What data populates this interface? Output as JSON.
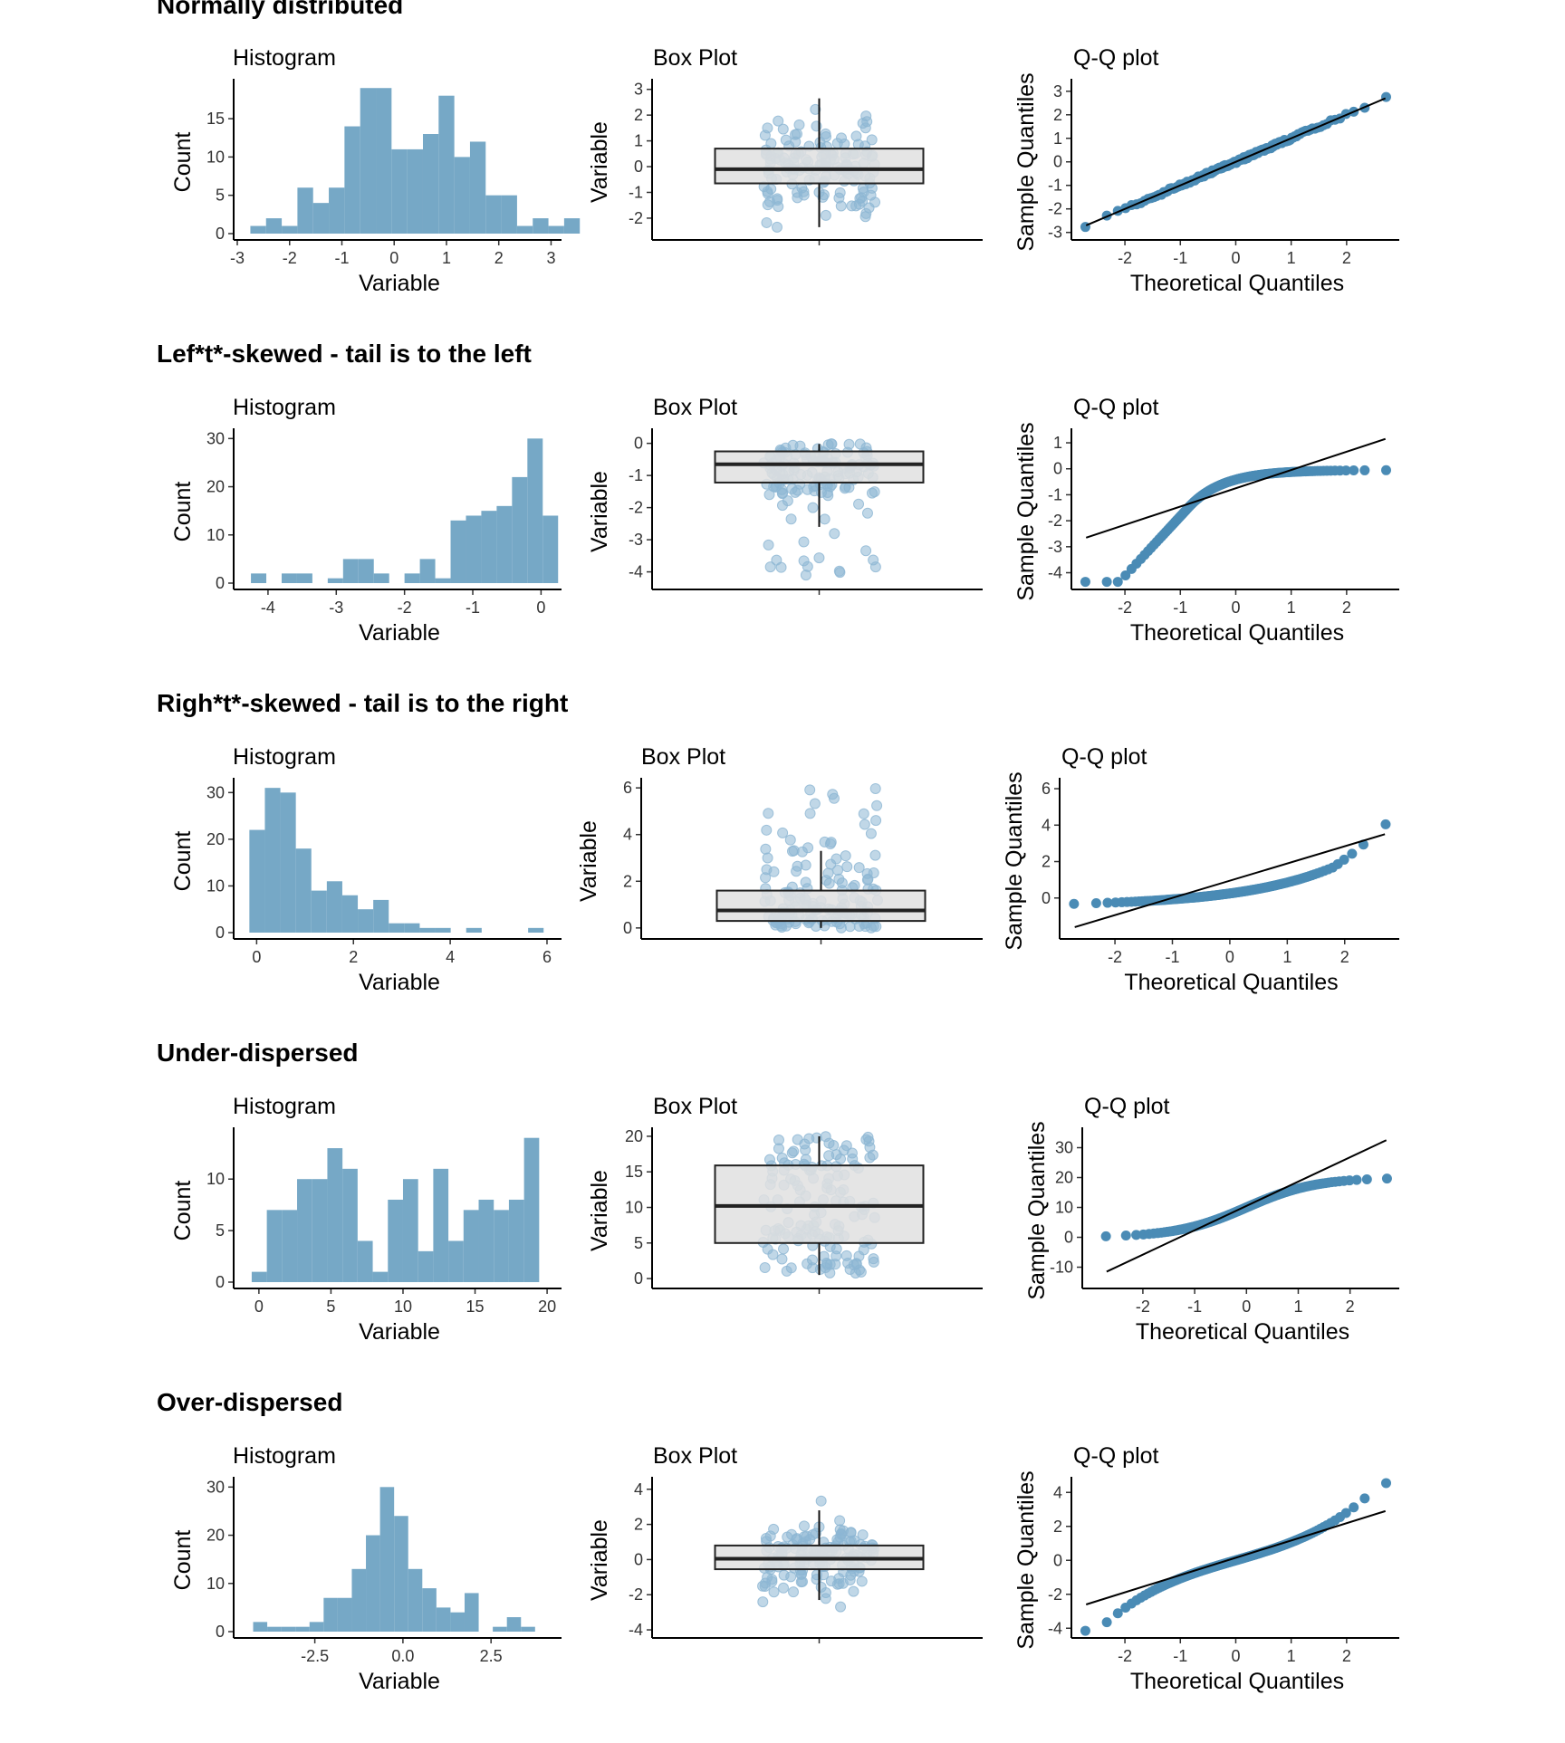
{
  "rows": [
    {
      "title": "Normally distributed"
    },
    {
      "title": "Lef*t*-skewed - tail is to the left"
    },
    {
      "title": "Righ*t*-skewed - tail is to the right"
    },
    {
      "title": "Under-dispersed"
    },
    {
      "title": "Over-dispersed"
    }
  ],
  "colors": {
    "hist_fill": "#76A8C6",
    "point": "#4A8BB5",
    "jitter": "#8DB6D3",
    "box_fill": "#E0E0E0",
    "line": "#000000"
  },
  "chart_data": [
    {
      "type": "bar",
      "subtype": "histogram",
      "title": "Histogram",
      "xlabel": "Variable",
      "ylabel": "Count",
      "xlim": [
        -3,
        3.2
      ],
      "ylim": [
        0,
        19.5
      ],
      "xticks": [
        -3,
        -2,
        -1,
        0,
        1,
        2,
        3
      ],
      "xtick_labels": [
        "-3",
        "-2",
        "-1",
        "0",
        "1",
        "2",
        "3"
      ],
      "yticks": [
        0,
        5,
        10,
        15
      ],
      "ytick_labels": [
        "0",
        "5",
        "10",
        "15"
      ],
      "bins": {
        "start": -2.75,
        "width": 0.3,
        "counts": [
          1,
          2,
          1,
          6,
          4,
          6,
          14,
          19,
          19,
          11,
          11,
          13,
          18,
          10,
          12,
          5,
          5,
          1,
          2,
          1,
          2
        ]
      }
    },
    {
      "type": "box",
      "title": "Box Plot",
      "ylabel": "Variable",
      "ylim": [
        -2.6,
        3.2
      ],
      "yticks": [
        -2,
        -1,
        0,
        1,
        2,
        3
      ],
      "ytick_labels": [
        "-2",
        "-1",
        "0",
        "1",
        "2",
        "3"
      ],
      "box": {
        "q1": -0.65,
        "median": -0.1,
        "q3": 0.7,
        "whisker_low": -2.35,
        "whisker_high": 2.65
      },
      "points_min": -2.35,
      "points_max": 2.95
    },
    {
      "type": "scatter",
      "subtype": "qq",
      "title": "Q-Q plot",
      "xlabel": "Theoretical Quantiles",
      "ylabel": "Sample Quantiles",
      "xlim": [
        -2.9,
        2.95
      ],
      "ylim": [
        -3.05,
        3.3
      ],
      "xticks": [
        -2,
        -1,
        0,
        1,
        2
      ],
      "xtick_labels": [
        "-2",
        "-1",
        "0",
        "1",
        "2"
      ],
      "yticks": [
        -3,
        -2,
        -1,
        0,
        1,
        2,
        3
      ],
      "ytick_labels": [
        "-3",
        "-2",
        "-1",
        "0",
        "1",
        "2",
        "3"
      ],
      "line": {
        "x1": -2.7,
        "y1": -2.7,
        "x2": 2.7,
        "y2": 2.7
      },
      "samples": {
        "kind": "normal"
      }
    },
    {
      "type": "bar",
      "subtype": "histogram",
      "title": "Histogram",
      "xlabel": "Variable",
      "ylabel": "Count",
      "xlim": [
        -4.45,
        0.3
      ],
      "ylim": [
        0,
        31
      ],
      "xticks": [
        -4,
        -3,
        -2,
        -1,
        0
      ],
      "xtick_labels": [
        "-4",
        "-3",
        "-2",
        "-1",
        "0"
      ],
      "yticks": [
        0,
        10,
        20,
        30
      ],
      "ytick_labels": [
        "0",
        "10",
        "20",
        "30"
      ],
      "bins": {
        "start": -4.25,
        "width": 0.225,
        "counts": [
          2,
          0,
          2,
          2,
          0,
          1,
          5,
          5,
          2,
          0,
          2,
          5,
          1,
          13,
          14,
          15,
          16,
          22,
          30,
          14
        ]
      }
    },
    {
      "type": "box",
      "title": "Box Plot",
      "ylabel": "Variable",
      "ylim": [
        -4.35,
        0.3
      ],
      "yticks": [
        -4,
        -3,
        -2,
        -1,
        0
      ],
      "ytick_labels": [
        "-4",
        "-3",
        "-2",
        "-1",
        "0"
      ],
      "box": {
        "q1": -1.22,
        "median": -0.65,
        "q3": -0.25,
        "whisker_low": -2.6,
        "whisker_high": -0.02
      },
      "points_min": -4.2,
      "points_max": 0.0
    },
    {
      "type": "scatter",
      "subtype": "qq",
      "title": "Q-Q plot",
      "xlabel": "Theoretical Quantiles",
      "ylabel": "Sample Quantiles",
      "xlim": [
        -2.9,
        2.95
      ],
      "ylim": [
        -4.4,
        1.35
      ],
      "xticks": [
        -2,
        -1,
        0,
        1,
        2
      ],
      "xtick_labels": [
        "-2",
        "-1",
        "0",
        "1",
        "2"
      ],
      "yticks": [
        -4,
        -3,
        -2,
        -1,
        0,
        1
      ],
      "ytick_labels": [
        "-4",
        "-3",
        "-2",
        "-1",
        "0",
        "1"
      ],
      "line": {
        "x1": -2.7,
        "y1": -2.65,
        "x2": 2.7,
        "y2": 1.15
      },
      "samples": {
        "kind": "left"
      }
    },
    {
      "type": "bar",
      "subtype": "histogram",
      "title": "Histogram",
      "xlabel": "Variable",
      "ylabel": "Count",
      "xlim": [
        -0.4,
        6.3
      ],
      "ylim": [
        0,
        32
      ],
      "xticks": [
        0,
        2,
        4,
        6
      ],
      "xtick_labels": [
        "0",
        "2",
        "4",
        "6"
      ],
      "yticks": [
        0,
        10,
        20,
        30
      ],
      "ytick_labels": [
        "0",
        "10",
        "20",
        "30"
      ],
      "bins": {
        "start": -0.15,
        "width": 0.32,
        "counts": [
          22,
          31,
          30,
          18,
          9,
          11,
          8,
          5,
          7,
          2,
          2,
          1,
          1,
          0,
          1,
          0,
          0,
          0,
          1
        ]
      }
    },
    {
      "type": "box",
      "title": "Box Plot",
      "ylabel": "Variable",
      "ylim": [
        -0.2,
        6.2
      ],
      "yticks": [
        0,
        2,
        4,
        6
      ],
      "ytick_labels": [
        "0",
        "2",
        "4",
        "6"
      ],
      "box": {
        "q1": 0.3,
        "median": 0.75,
        "q3": 1.6,
        "whisker_low": 0.0,
        "whisker_high": 3.3
      },
      "points_min": 0.0,
      "points_max": 5.9
    },
    {
      "type": "scatter",
      "subtype": "qq",
      "title": "Q-Q plot",
      "xlabel": "Theoretical Quantiles",
      "ylabel": "Sample Quantiles",
      "xlim": [
        -2.9,
        2.95
      ],
      "ylim": [
        -1.9,
        6.3
      ],
      "xticks": [
        -2,
        -1,
        0,
        1,
        2
      ],
      "xtick_labels": [
        "-2",
        "-1",
        "0",
        "1",
        "2"
      ],
      "yticks": [
        0,
        2,
        4,
        6
      ],
      "ytick_labels": [
        "0",
        "2",
        "4",
        "6"
      ],
      "line": {
        "x1": -2.7,
        "y1": -1.6,
        "x2": 2.7,
        "y2": 3.5
      },
      "samples": {
        "kind": "right"
      }
    },
    {
      "type": "bar",
      "subtype": "histogram",
      "title": "Histogram",
      "xlabel": "Variable",
      "ylabel": "Count",
      "xlim": [
        -1.5,
        21.0
      ],
      "ylim": [
        0,
        14.5
      ],
      "xticks": [
        0,
        5,
        10,
        15,
        20
      ],
      "xtick_labels": [
        "0",
        "5",
        "10",
        "15",
        "20"
      ],
      "yticks": [
        0,
        5,
        10
      ],
      "ytick_labels": [
        "0",
        "5",
        "10"
      ],
      "bins": {
        "start": -0.5,
        "width": 1.05,
        "counts": [
          1,
          7,
          7,
          10,
          10,
          13,
          11,
          4,
          1,
          8,
          10,
          3,
          11,
          4,
          7,
          8,
          7,
          8,
          14
        ]
      }
    },
    {
      "type": "box",
      "title": "Box Plot",
      "ylabel": "Variable",
      "ylim": [
        -0.5,
        20.5
      ],
      "yticks": [
        0,
        5,
        10,
        15,
        20
      ],
      "ytick_labels": [
        "0",
        "5",
        "10",
        "15",
        "20"
      ],
      "box": {
        "q1": 5.0,
        "median": 10.2,
        "q3": 15.9,
        "whisker_low": 0.5,
        "whisker_high": 20.0
      },
      "points_min": 0.5,
      "points_max": 20.0
    },
    {
      "type": "scatter",
      "subtype": "qq",
      "title": "Q-Q plot",
      "xlabel": "Theoretical Quantiles",
      "ylabel": "Sample Quantiles",
      "xlim": [
        -3.1,
        2.95
      ],
      "ylim": [
        -15,
        35
      ],
      "xticks": [
        -2,
        -1,
        0,
        1,
        2
      ],
      "xtick_labels": [
        "-2",
        "-1",
        "0",
        "1",
        "2"
      ],
      "yticks": [
        -10,
        0,
        10,
        20,
        30
      ],
      "ytick_labels": [
        "-10",
        "0",
        "10",
        "20",
        "30"
      ],
      "line": {
        "x1": -2.7,
        "y1": -11.5,
        "x2": 2.7,
        "y2": 32.5
      },
      "samples": {
        "kind": "under"
      }
    },
    {
      "type": "bar",
      "subtype": "histogram",
      "title": "Histogram",
      "xlabel": "Variable",
      "ylabel": "Count",
      "xlim": [
        -4.7,
        4.5
      ],
      "ylim": [
        0,
        31
      ],
      "xticks": [
        -2.5,
        0.0,
        2.5
      ],
      "xtick_labels": [
        "-2.5",
        "0.0",
        "2.5"
      ],
      "yticks": [
        0,
        10,
        20,
        30
      ],
      "ytick_labels": [
        "0",
        "10",
        "20",
        "30"
      ],
      "bins": {
        "start": -4.25,
        "width": 0.4,
        "counts": [
          2,
          1,
          1,
          1,
          2,
          7,
          7,
          13,
          20,
          30,
          24,
          13,
          9,
          5,
          4,
          8,
          0,
          1,
          3,
          1
        ]
      }
    },
    {
      "type": "box",
      "title": "Box Plot",
      "ylabel": "Variable",
      "ylim": [
        -4.1,
        4.4
      ],
      "yticks": [
        -4,
        -2,
        0,
        2,
        4
      ],
      "ytick_labels": [
        "-4",
        "-2",
        "0",
        "2",
        "4"
      ],
      "box": {
        "q1": -0.55,
        "median": 0.05,
        "q3": 0.8,
        "whisker_low": -2.3,
        "whisker_high": 2.8
      },
      "points_min": -3.8,
      "points_max": 4.2
    },
    {
      "type": "scatter",
      "subtype": "qq",
      "title": "Q-Q plot",
      "xlabel": "Theoretical Quantiles",
      "ylabel": "Sample Quantiles",
      "xlim": [
        -2.9,
        2.95
      ],
      "ylim": [
        -4.2,
        4.6
      ],
      "xticks": [
        -2,
        -1,
        0,
        1,
        2
      ],
      "xtick_labels": [
        "-2",
        "-1",
        "0",
        "1",
        "2"
      ],
      "yticks": [
        -4,
        -2,
        0,
        2,
        4
      ],
      "ytick_labels": [
        "-4",
        "-2",
        "0",
        "2",
        "4"
      ],
      "line": {
        "x1": -2.7,
        "y1": -2.6,
        "x2": 2.7,
        "y2": 2.9
      },
      "samples": {
        "kind": "over"
      }
    }
  ]
}
